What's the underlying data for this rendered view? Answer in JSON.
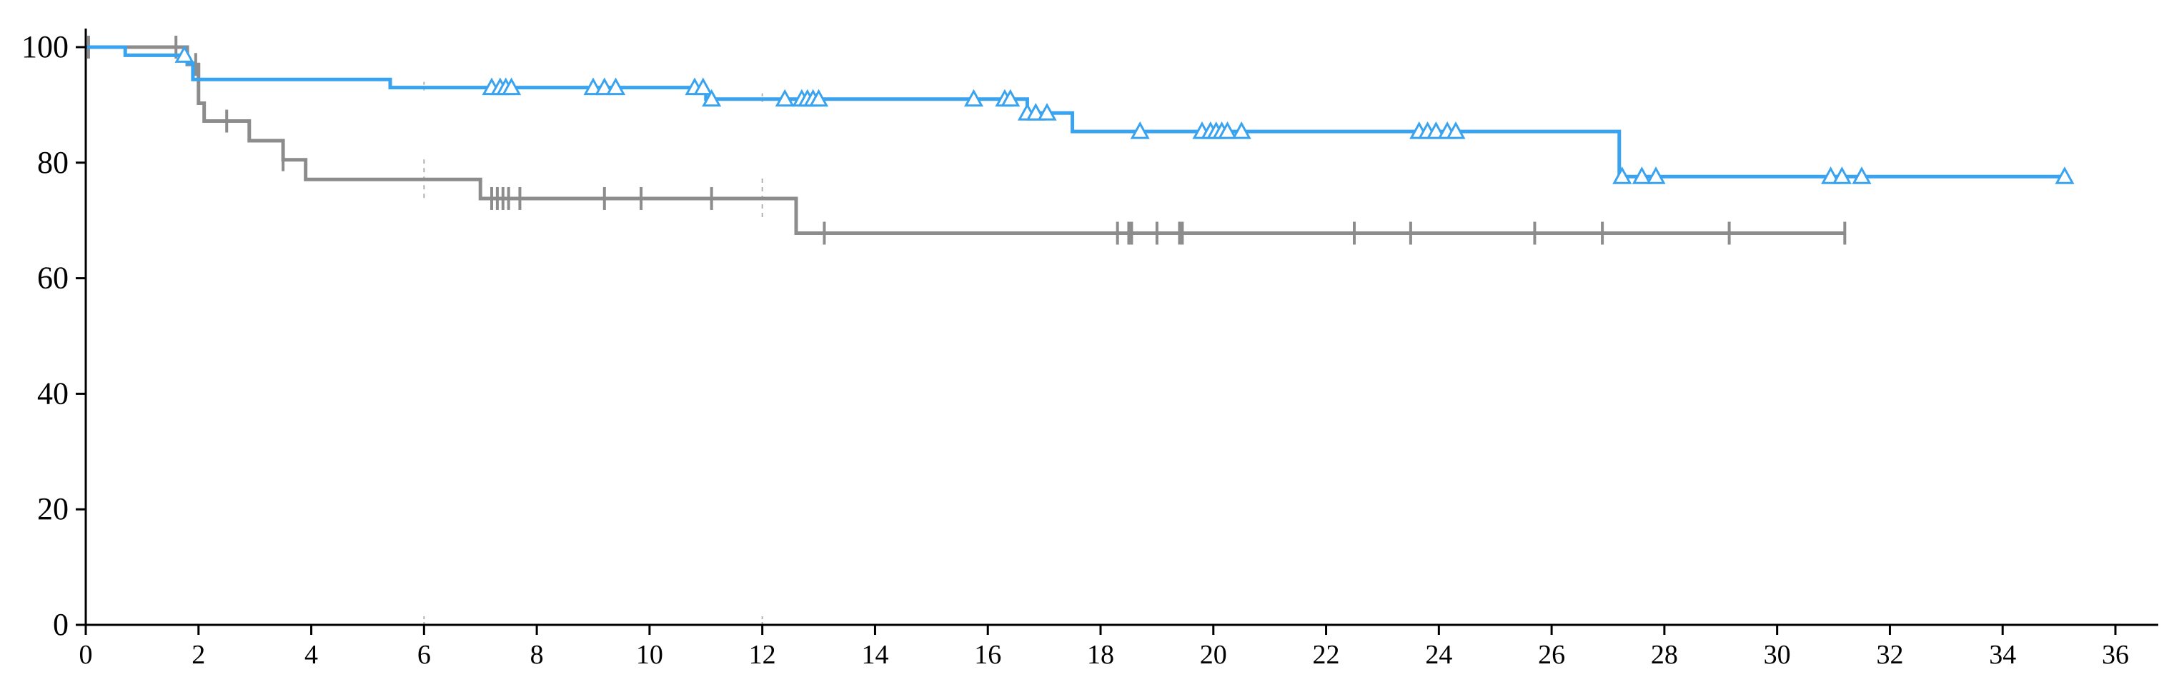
{
  "chart_data": {
    "type": "line",
    "title": "",
    "xlabel": "",
    "ylabel": "",
    "xlim": [
      0,
      36
    ],
    "ylim": [
      0,
      100
    ],
    "x_ticks": [
      0,
      2,
      4,
      6,
      8,
      10,
      12,
      14,
      16,
      18,
      20,
      22,
      24,
      26,
      28,
      30,
      32,
      34,
      36
    ],
    "x_tick_labels": [
      "0",
      "2",
      "4",
      "6",
      "8",
      "10",
      "12",
      "14",
      "16",
      "18",
      "20",
      "22",
      "24",
      "26",
      "28",
      "30",
      "32",
      "34",
      "36"
    ],
    "y_ticks": [
      0,
      20,
      40,
      60,
      80,
      100
    ],
    "y_tick_labels": [
      "0",
      "20",
      "40",
      "60",
      "80",
      "100"
    ],
    "reference_x": [
      6,
      12
    ],
    "grid": false,
    "legend": "none",
    "series": [
      {
        "color": "#3aa3ef",
        "marker": "triangle",
        "steps": [
          [
            0,
            100
          ],
          [
            0.7,
            98.6
          ],
          [
            1.8,
            97.2
          ],
          [
            1.9,
            94.4
          ],
          [
            5.4,
            93.0
          ],
          [
            11.0,
            91.0
          ],
          [
            16.7,
            88.6
          ],
          [
            17.5,
            85.4
          ],
          [
            27.2,
            77.6
          ],
          [
            35.1,
            77.6
          ]
        ],
        "censored": [
          1.75,
          7.2,
          7.35,
          7.45,
          7.55,
          9.0,
          9.2,
          9.4,
          10.8,
          10.95,
          11.1,
          12.4,
          12.7,
          12.8,
          12.9,
          13.0,
          15.75,
          16.3,
          16.4,
          16.7,
          16.85,
          17.05,
          18.7,
          19.8,
          19.95,
          20.05,
          20.15,
          20.25,
          20.5,
          23.65,
          23.8,
          23.95,
          24.15,
          24.3,
          27.25,
          27.6,
          27.85,
          30.95,
          31.15,
          31.5,
          35.1
        ]
      },
      {
        "color": "#8c8c8c",
        "marker": "plus",
        "steps": [
          [
            0,
            100
          ],
          [
            1.8,
            97.0
          ],
          [
            2.0,
            90.3
          ],
          [
            2.1,
            87.2
          ],
          [
            2.9,
            83.8
          ],
          [
            3.5,
            80.5
          ],
          [
            3.9,
            77.1
          ],
          [
            7.0,
            73.8
          ],
          [
            12.6,
            67.8
          ],
          [
            31.2,
            67.8
          ]
        ],
        "censored": [
          0.05,
          1.6,
          1.95,
          2.5,
          3.5,
          7.2,
          7.3,
          7.4,
          7.5,
          7.7,
          9.2,
          9.85,
          11.1,
          13.1,
          18.3,
          18.5,
          18.55,
          19.0,
          19.4,
          19.45,
          22.5,
          23.5,
          25.7,
          26.9,
          29.15,
          31.2
        ]
      }
    ]
  }
}
